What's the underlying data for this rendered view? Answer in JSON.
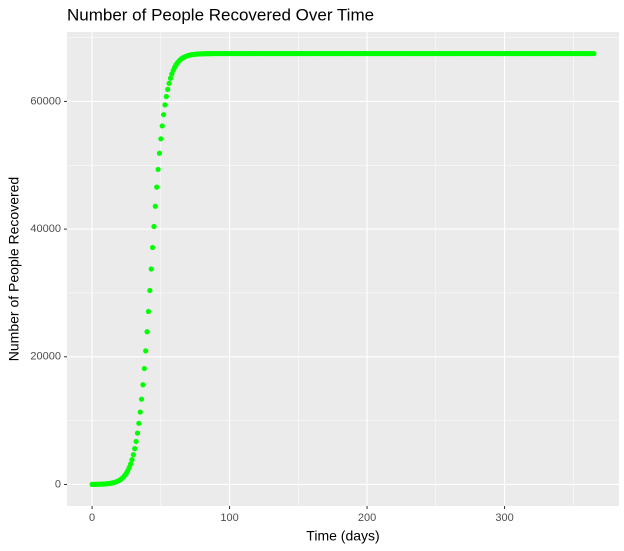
{
  "chart_data": {
    "type": "scatter",
    "title": "Number of People Recovered Over Time",
    "x_label": "Time (days)",
    "y_label": "Number of People Recovered",
    "color": "#00ff00",
    "grid": true,
    "xlim": [
      -18.25,
      383.25
    ],
    "ylim": [
      -3375,
      70875
    ],
    "xticks": [
      0,
      100,
      200,
      300
    ],
    "yticks": [
      0,
      20000,
      40000,
      60000
    ],
    "xminorticks": [
      50,
      150,
      250,
      350
    ],
    "yminorticks": [
      10000,
      30000,
      50000,
      70000
    ],
    "x": [
      0,
      1,
      2,
      3,
      4,
      5,
      6,
      7,
      8,
      9,
      10,
      11,
      12,
      13,
      14,
      15,
      16,
      17,
      18,
      19,
      20,
      21,
      22,
      23,
      24,
      25,
      26,
      27,
      28,
      29,
      30,
      31,
      32,
      33,
      34,
      35,
      36,
      37,
      38,
      39,
      40,
      41,
      42,
      43,
      44,
      45,
      46,
      47,
      48,
      49,
      50,
      51,
      52,
      53,
      54,
      55,
      56,
      57,
      58,
      59,
      60,
      61,
      62,
      63,
      64,
      65,
      66,
      67,
      68,
      69,
      70,
      71,
      72,
      73,
      74,
      75,
      76,
      77,
      78,
      79,
      80,
      81,
      82,
      83,
      84,
      85,
      86,
      87,
      88,
      89,
      90,
      91,
      92,
      93,
      94,
      95,
      96,
      97,
      98,
      99,
      100,
      101,
      102,
      103,
      104,
      105,
      106,
      107,
      108,
      109,
      110,
      111,
      112,
      113,
      114,
      115,
      116,
      117,
      118,
      119,
      120,
      121,
      122,
      123,
      124,
      125,
      126,
      127,
      128,
      129,
      130,
      131,
      132,
      133,
      134,
      135,
      136,
      137,
      138,
      139,
      140,
      141,
      142,
      143,
      144,
      145,
      146,
      147,
      148,
      149,
      150,
      151,
      152,
      153,
      154,
      155,
      156,
      157,
      158,
      159,
      160,
      161,
      162,
      163,
      164,
      165,
      166,
      167,
      168,
      169,
      170,
      171,
      172,
      173,
      174,
      175,
      176,
      177,
      178,
      179,
      180,
      181,
      182,
      183,
      184,
      185,
      186,
      187,
      188,
      189,
      190,
      191,
      192,
      193,
      194,
      195,
      196,
      197,
      198,
      199,
      200,
      201,
      202,
      203,
      204,
      205,
      206,
      207,
      208,
      209,
      210,
      211,
      212,
      213,
      214,
      215,
      216,
      217,
      218,
      219,
      220,
      221,
      222,
      223,
      224,
      225,
      226,
      227,
      228,
      229,
      230,
      231,
      232,
      233,
      234,
      235,
      236,
      237,
      238,
      239,
      240,
      241,
      242,
      243,
      244,
      245,
      246,
      247,
      248,
      249,
      250,
      251,
      252,
      253,
      254,
      255,
      256,
      257,
      258,
      259,
      260,
      261,
      262,
      263,
      264,
      265,
      266,
      267,
      268,
      269,
      270,
      271,
      272,
      273,
      274,
      275,
      276,
      277,
      278,
      279,
      280,
      281,
      282,
      283,
      284,
      285,
      286,
      287,
      288,
      289,
      290,
      291,
      292,
      293,
      294,
      295,
      296,
      297,
      298,
      299,
      300,
      301,
      302,
      303,
      304,
      305,
      306,
      307,
      308,
      309,
      310,
      311,
      312,
      313,
      314,
      315,
      316,
      317,
      318,
      319,
      320,
      321,
      322,
      323,
      324,
      325,
      326,
      327,
      328,
      329,
      330,
      331,
      332,
      333,
      334,
      335,
      336,
      337,
      338,
      339,
      340,
      341,
      342,
      343,
      344,
      345,
      346,
      347,
      348,
      349,
      350,
      351,
      352,
      353,
      354,
      355,
      356,
      357,
      358,
      359,
      360,
      361,
      362,
      363,
      364,
      365
    ],
    "values": [
      12,
      15,
      19,
      23,
      28,
      34,
      41,
      50,
      62,
      75,
      92,
      112,
      137,
      167,
      204,
      249,
      304,
      371,
      452,
      551,
      672,
      819,
      998,
      1214,
      1477,
      1795,
      2179,
      2644,
      3200,
      3870,
      4668,
      5616,
      6733,
      8046,
      9574,
      11339,
      13353,
      15622,
      18155,
      20925,
      23919,
      27091,
      30386,
      33750,
      37114,
      40409,
      43581,
      46575,
      49345,
      51878,
      54147,
      56161,
      57926,
      59454,
      60767,
      61884,
      62830,
      63630,
      64305,
      64856,
      65321,
      65705,
      66023,
      66286,
      66502,
      66681,
      66828,
      66949,
      67048,
      67129,
      67196,
      67251,
      67296,
      67333,
      67363,
      67387,
      67408,
      67425,
      67438,
      67450,
      67459,
      67466,
      67472,
      67477,
      67481,
      67485,
      67488,
      67490,
      67492,
      67494,
      67495,
      67496,
      67497,
      67497,
      67498,
      67500,
      67500,
      67500,
      67500,
      67500,
      67500,
      67500,
      67500,
      67500,
      67500,
      67500,
      67500,
      67500,
      67500,
      67500,
      67500,
      67500,
      67500,
      67500,
      67500,
      67500,
      67500,
      67500,
      67500,
      67500,
      67500,
      67500,
      67500,
      67500,
      67500,
      67500,
      67500,
      67500,
      67500,
      67500,
      67500,
      67500,
      67500,
      67500,
      67500,
      67500,
      67500,
      67500,
      67500,
      67500,
      67500,
      67500,
      67500,
      67500,
      67500,
      67500,
      67500,
      67500,
      67500,
      67500,
      67500,
      67500,
      67500,
      67500,
      67500,
      67500,
      67500,
      67500,
      67500,
      67500,
      67500,
      67500,
      67500,
      67500,
      67500,
      67500,
      67500,
      67500,
      67500,
      67500,
      67500,
      67500,
      67500,
      67500,
      67500,
      67500,
      67500,
      67500,
      67500,
      67500,
      67500,
      67500,
      67500,
      67500,
      67500,
      67500,
      67500,
      67500,
      67500,
      67500,
      67500,
      67500,
      67500,
      67500,
      67500,
      67500,
      67500,
      67500,
      67500,
      67500,
      67500,
      67500,
      67500,
      67500,
      67500,
      67500,
      67500,
      67500,
      67500,
      67500,
      67500,
      67500,
      67500,
      67500,
      67500,
      67500,
      67500,
      67500,
      67500,
      67500,
      67500,
      67500,
      67500,
      67500,
      67500,
      67500,
      67500,
      67500,
      67500,
      67500,
      67500,
      67500,
      67500,
      67500,
      67500,
      67500,
      67500,
      67500,
      67500,
      67500,
      67500,
      67500,
      67500,
      67500,
      67500,
      67500,
      67500,
      67500,
      67500,
      67500,
      67500,
      67500,
      67500,
      67500,
      67500,
      67500,
      67500,
      67500,
      67500,
      67500,
      67500,
      67500,
      67500,
      67500,
      67500,
      67500,
      67500,
      67500,
      67500,
      67500,
      67500,
      67500,
      67500,
      67500,
      67500,
      67500,
      67500,
      67500,
      67500,
      67500,
      67500,
      67500,
      67500,
      67500,
      67500,
      67500,
      67500,
      67500,
      67500,
      67500,
      67500,
      67500,
      67500,
      67500,
      67500,
      67500,
      67500,
      67500,
      67500,
      67500,
      67500,
      67500,
      67500,
      67500,
      67500,
      67500,
      67500,
      67500,
      67500,
      67500,
      67500,
      67500,
      67500,
      67500,
      67500,
      67500,
      67500,
      67500,
      67500,
      67500,
      67500,
      67500,
      67500,
      67500,
      67500,
      67500,
      67500,
      67500,
      67500,
      67500,
      67500,
      67500,
      67500,
      67500,
      67500,
      67500,
      67500,
      67500,
      67500,
      67500,
      67500,
      67500,
      67500,
      67500,
      67500,
      67500,
      67500,
      67500,
      67500,
      67500,
      67500,
      67500,
      67500,
      67500,
      67500,
      67500,
      67500,
      67500,
      67500,
      67500,
      67500,
      67500,
      67500,
      67500,
      67500,
      67500
    ]
  }
}
